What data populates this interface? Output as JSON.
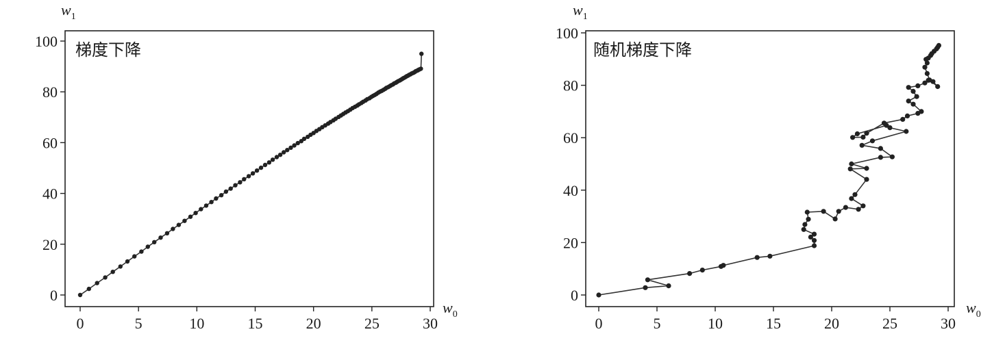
{
  "chart_data": [
    {
      "type": "line",
      "title": "梯度下降",
      "xlabel": "w",
      "xlabel_sub": "0",
      "ylabel": "w",
      "ylabel_sub": "1",
      "xlim": [
        0,
        30
      ],
      "ylim": [
        0,
        100
      ],
      "xticks": [
        0,
        5,
        10,
        15,
        20,
        25,
        30
      ],
      "yticks": [
        0,
        20,
        40,
        60,
        80,
        100
      ],
      "grid": false,
      "series": [
        {
          "markers": true,
          "x": [
            0.0,
            0.75,
            1.45,
            2.15,
            2.8,
            3.45,
            4.05,
            4.65,
            5.25,
            5.8,
            6.35,
            6.9,
            7.45,
            7.95,
            8.45,
            8.95,
            9.45,
            9.9,
            10.35,
            10.8,
            11.25,
            11.65,
            12.1,
            12.5,
            12.9,
            13.3,
            13.7,
            14.05,
            14.45,
            14.8,
            15.15,
            15.5,
            15.85,
            16.2,
            16.5,
            16.85,
            17.15,
            17.45,
            17.75,
            18.05,
            18.35,
            18.65,
            18.95,
            19.2,
            19.5,
            19.75,
            20.0,
            20.25,
            20.5,
            20.75,
            21.0,
            21.25,
            21.45,
            21.7,
            21.9,
            22.15,
            22.35,
            22.55,
            22.75,
            22.95,
            23.15,
            23.35,
            23.55,
            23.75,
            23.9,
            24.1,
            24.25,
            24.45,
            24.6,
            24.8,
            24.95,
            25.1,
            25.25,
            25.4,
            25.55,
            25.7,
            25.85,
            26.0,
            26.15,
            26.25,
            26.4,
            26.55,
            26.65,
            26.8,
            26.9,
            27.05,
            27.15,
            27.25,
            27.4,
            27.5,
            27.6,
            27.7,
            27.8,
            27.9,
            28.0,
            28.1,
            28.2,
            28.3,
            28.4,
            28.5,
            28.6,
            28.7,
            28.75,
            28.85,
            28.95,
            29.0,
            29.1,
            29.2,
            29.25
          ],
          "y": [
            0.0,
            2.4,
            4.7,
            6.9,
            9.1,
            11.2,
            13.2,
            15.2,
            17.1,
            19.0,
            20.8,
            22.6,
            24.3,
            26.0,
            27.6,
            29.2,
            30.8,
            32.3,
            33.8,
            35.2,
            36.6,
            38.0,
            39.3,
            40.7,
            41.9,
            43.2,
            44.4,
            45.6,
            46.8,
            47.9,
            49.0,
            50.1,
            51.2,
            52.2,
            53.3,
            54.3,
            55.2,
            56.2,
            57.1,
            58.0,
            58.9,
            59.8,
            60.6,
            61.5,
            62.3,
            63.1,
            63.8,
            64.6,
            65.3,
            66.1,
            66.8,
            67.5,
            68.1,
            68.8,
            69.4,
            70.1,
            70.7,
            71.3,
            71.9,
            72.4,
            73.0,
            73.6,
            74.1,
            74.6,
            75.1,
            75.6,
            76.1,
            76.6,
            77.1,
            77.5,
            78.0,
            78.4,
            78.8,
            79.2,
            79.7,
            80.1,
            80.4,
            80.8,
            81.2,
            81.6,
            81.9,
            82.3,
            82.6,
            82.9,
            83.3,
            83.6,
            83.9,
            84.2,
            84.5,
            84.8,
            85.1,
            85.4,
            85.6,
            85.9,
            86.2,
            86.4,
            86.7,
            86.9,
            87.2,
            87.4,
            87.6,
            87.9,
            88.1,
            88.3,
            88.5,
            88.7,
            88.9,
            89.1,
            95.0
          ]
        }
      ]
    },
    {
      "type": "line",
      "title": "随机梯度下降",
      "xlabel": "w",
      "xlabel_sub": "0",
      "ylabel": "w",
      "ylabel_sub": "1",
      "xlim": [
        0,
        30
      ],
      "ylim": [
        0,
        100
      ],
      "xticks": [
        0,
        5,
        10,
        15,
        20,
        25,
        30
      ],
      "yticks": [
        0,
        20,
        40,
        60,
        80,
        100
      ],
      "grid": false,
      "series": [
        {
          "markers": true,
          "x": [
            0,
            4.0,
            6.0,
            4.2,
            7.8,
            8.9,
            10.5,
            10.7,
            13.6,
            14.7,
            18.5,
            18.5,
            18.2,
            18.5,
            17.6,
            17.7,
            18.0,
            17.9,
            19.3,
            20.3,
            20.6,
            21.2,
            22.3,
            22.7,
            21.7,
            22.0,
            23.0,
            21.6,
            23.0,
            21.7,
            24.2,
            25.2,
            24.2,
            22.6,
            23.5,
            26.4,
            25.0,
            24.7,
            22.2,
            21.8,
            22.7,
            23.0,
            24.5,
            26.1,
            26.5,
            27.4,
            27.7,
            27.0,
            26.6,
            27.3,
            27.0,
            26.6,
            27.4,
            28.0,
            28.3,
            28.7,
            29.1,
            28.4,
            28.2,
            28.0,
            28.2,
            28.1,
            28.3,
            28.5,
            28.6,
            28.8,
            29.0,
            29.1,
            29.2
          ],
          "y": [
            0,
            2.8,
            3.5,
            5.8,
            8.2,
            9.5,
            10.9,
            11.3,
            14.3,
            14.8,
            18.8,
            20.8,
            22.1,
            23.2,
            25.0,
            26.9,
            28.9,
            31.6,
            31.9,
            29.0,
            31.9,
            33.4,
            32.7,
            34.0,
            36.8,
            38.3,
            44.1,
            48.1,
            48.3,
            50.0,
            52.5,
            52.7,
            55.9,
            57.1,
            58.8,
            62.4,
            63.8,
            64.7,
            61.5,
            60.1,
            60.2,
            61.7,
            65.6,
            67.0,
            68.3,
            69.3,
            70.0,
            72.8,
            74.0,
            75.7,
            77.7,
            79.2,
            79.8,
            80.9,
            81.9,
            81.4,
            79.5,
            82.0,
            84.5,
            86.9,
            88.5,
            89.9,
            90.4,
            91.4,
            92.1,
            93.0,
            93.9,
            94.5,
            95.2
          ]
        }
      ]
    }
  ]
}
